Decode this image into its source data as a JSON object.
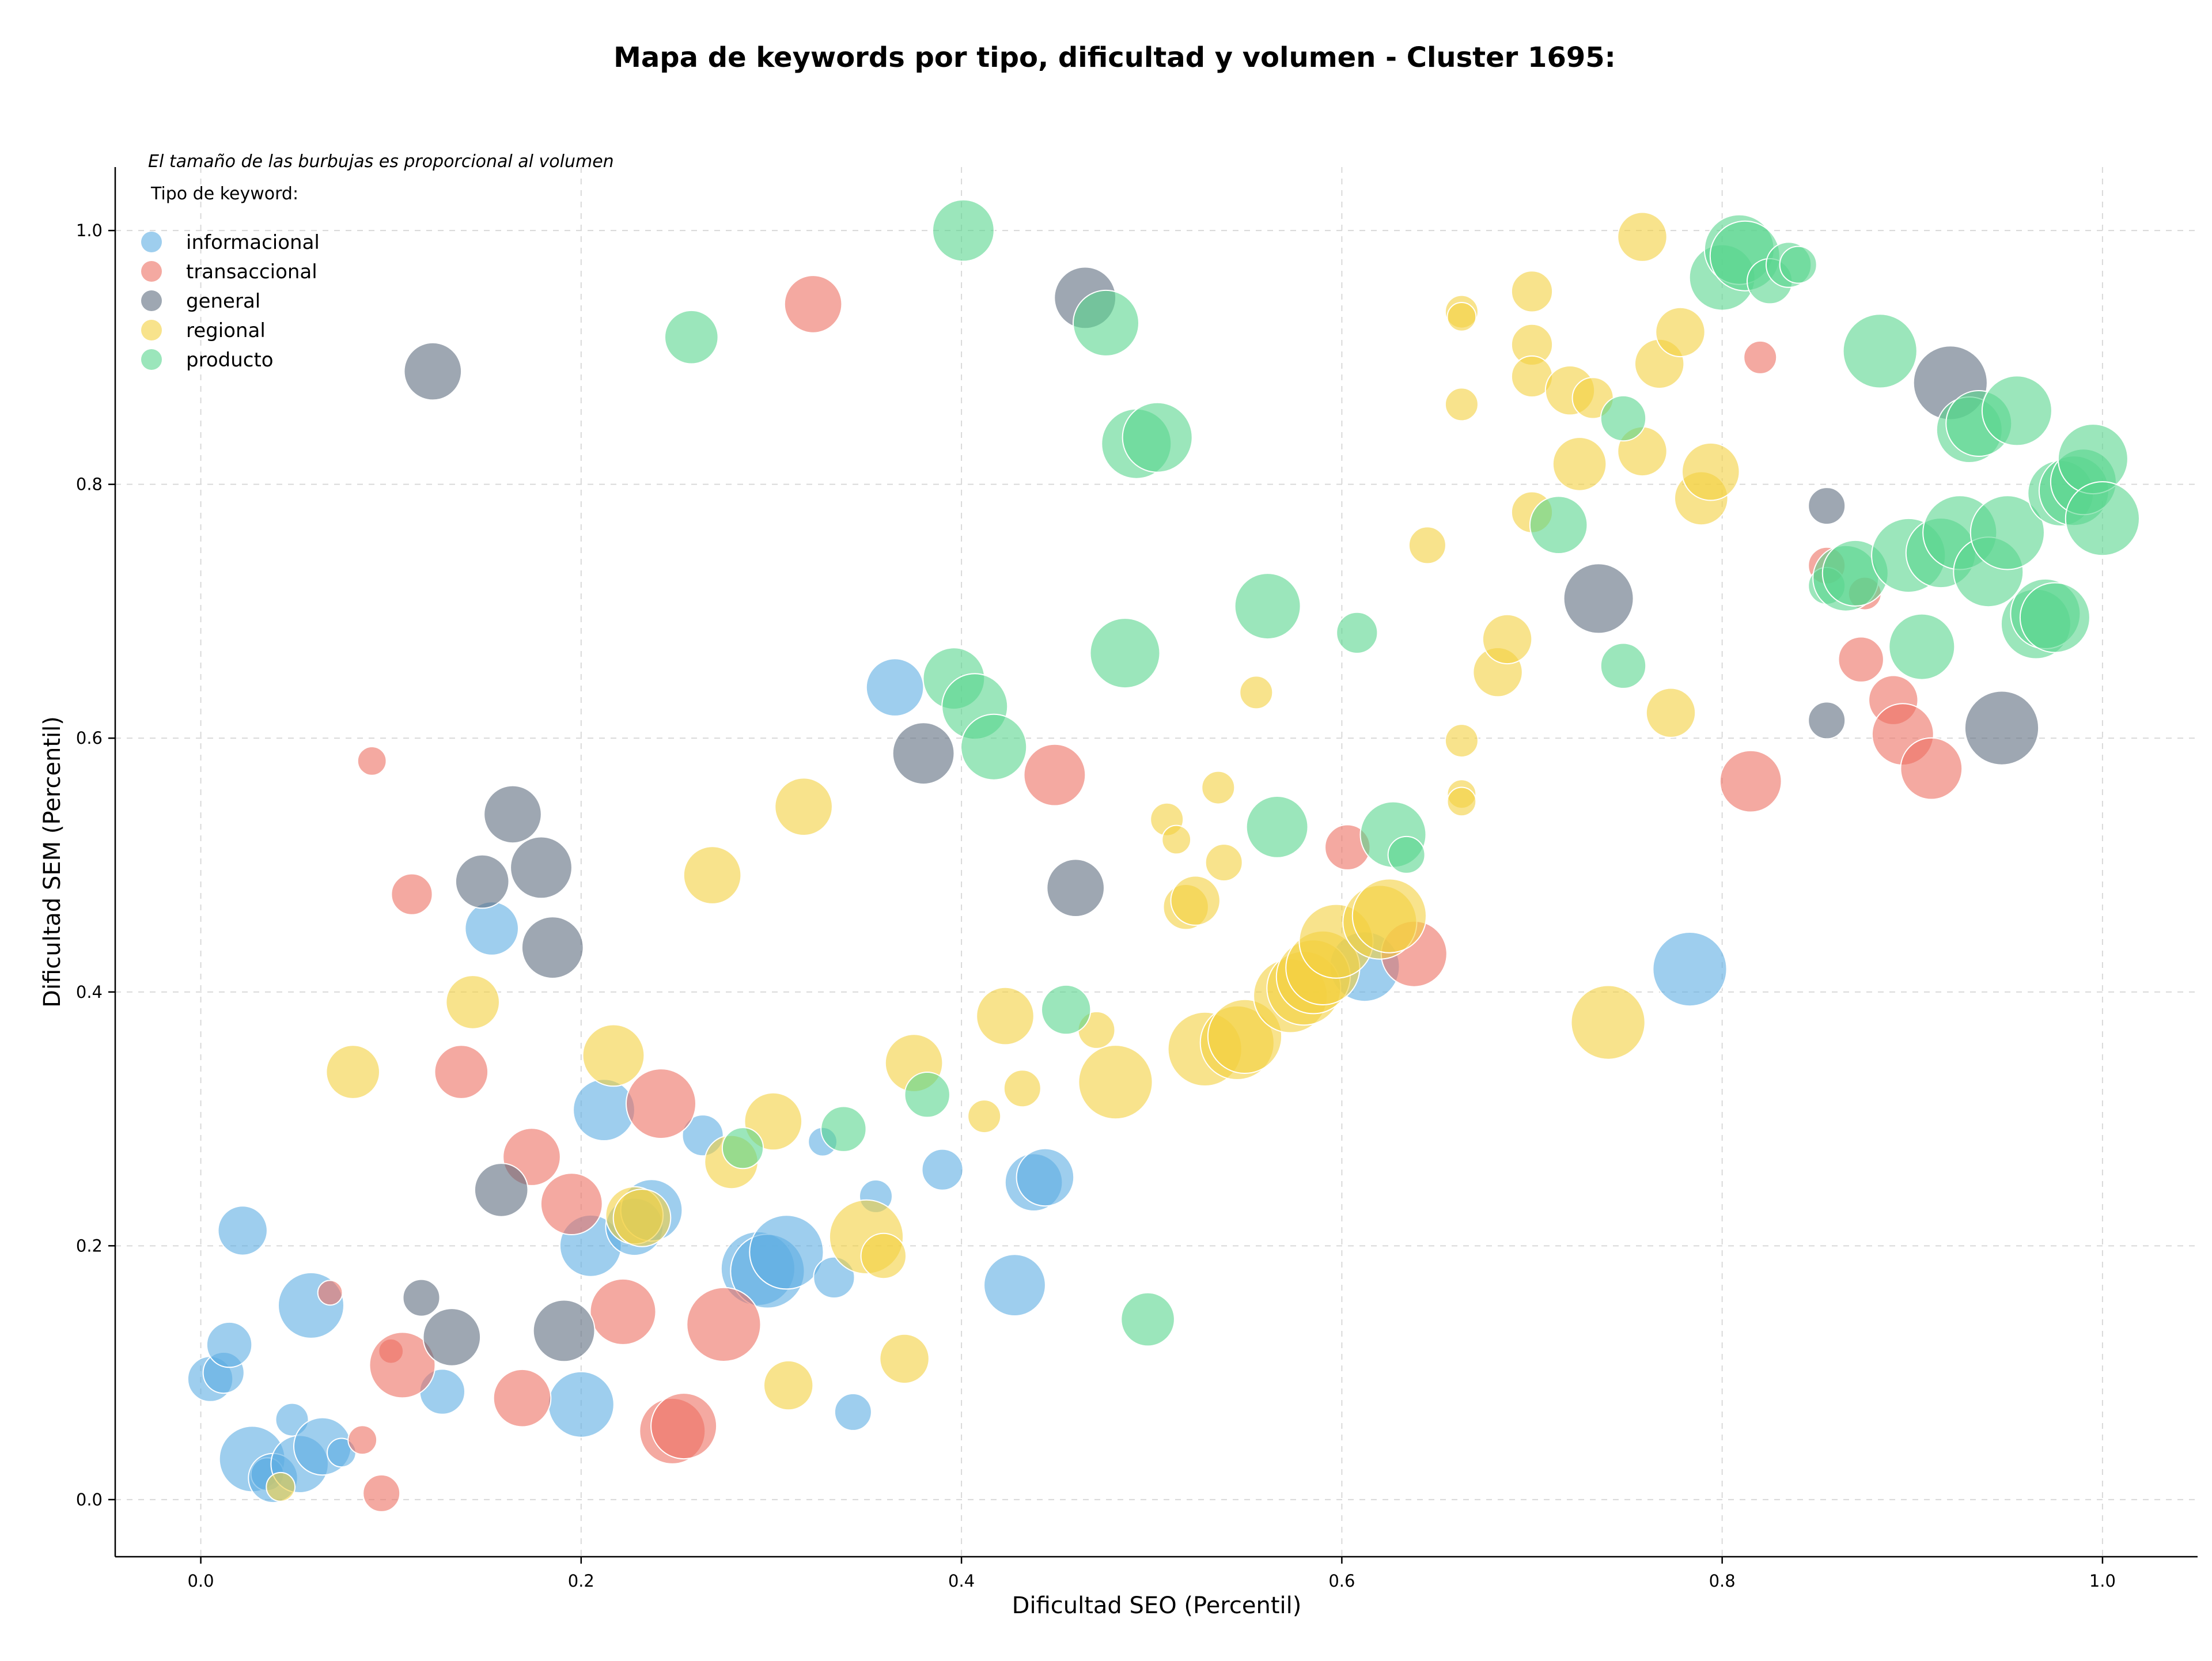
{
  "chart_data": {
    "type": "scatter",
    "title": "Mapa de keywords por tipo, dificultad y volumen - Cluster 1695:",
    "xlabel": "Dificultad SEO (Percentil)",
    "ylabel": "Dificultad SEM (Percentil)",
    "xlim": [
      -0.045,
      1.05
    ],
    "ylim": [
      -0.045,
      1.05
    ],
    "x_ticks": [
      "0.0",
      "0.2",
      "0.4",
      "0.6",
      "0.8",
      "1.0"
    ],
    "y_ticks": [
      "0.0",
      "0.2",
      "0.4",
      "0.6",
      "0.8",
      "1.0"
    ],
    "grid": true,
    "note": "El tamaño de las burbujas es proporcional al volumen",
    "legend": {
      "title": "Tipo de keyword:",
      "placement": "top-left",
      "entries": [
        "informacional",
        "transaccional",
        "general",
        "regional",
        "producto"
      ]
    },
    "colors": {
      "informacional": "#5dade2",
      "transaccional": "#ec7063",
      "general": "#5d6d7e",
      "regional": "#f4d03f",
      "producto": "#58d68d"
    },
    "size_unit": "relative volume (bubble radius scale)",
    "series": [
      {
        "name": "informacional",
        "points": [
          [
            0.005,
            0.095,
            22
          ],
          [
            0.012,
            0.1,
            20
          ],
          [
            0.015,
            0.122,
            22
          ],
          [
            0.022,
            0.212,
            24
          ],
          [
            0.027,
            0.032,
            32
          ],
          [
            0.035,
            0.02,
            16
          ],
          [
            0.038,
            0.017,
            24
          ],
          [
            0.048,
            0.063,
            16
          ],
          [
            0.052,
            0.028,
            28
          ],
          [
            0.058,
            0.153,
            32
          ],
          [
            0.064,
            0.042,
            28
          ],
          [
            0.074,
            0.037,
            14
          ],
          [
            0.127,
            0.085,
            22
          ],
          [
            0.153,
            0.45,
            26
          ],
          [
            0.2,
            0.075,
            32
          ],
          [
            0.205,
            0.2,
            30
          ],
          [
            0.212,
            0.307,
            30
          ],
          [
            0.228,
            0.215,
            28
          ],
          [
            0.237,
            0.228,
            30
          ],
          [
            0.264,
            0.287,
            20
          ],
          [
            0.293,
            0.182,
            36
          ],
          [
            0.298,
            0.18,
            36
          ],
          [
            0.308,
            0.195,
            36
          ],
          [
            0.327,
            0.282,
            14
          ],
          [
            0.333,
            0.175,
            20
          ],
          [
            0.343,
            0.069,
            18
          ],
          [
            0.355,
            0.239,
            16
          ],
          [
            0.365,
            0.64,
            28
          ],
          [
            0.39,
            0.26,
            20
          ],
          [
            0.428,
            0.169,
            30
          ],
          [
            0.438,
            0.25,
            28
          ],
          [
            0.444,
            0.254,
            28
          ],
          [
            0.612,
            0.42,
            34
          ],
          [
            0.783,
            0.418,
            36
          ]
        ]
      },
      {
        "name": "transaccional",
        "points": [
          [
            0.068,
            0.163,
            12
          ],
          [
            0.085,
            0.047,
            14
          ],
          [
            0.09,
            0.582,
            14
          ],
          [
            0.095,
            0.005,
            18
          ],
          [
            0.1,
            0.117,
            12
          ],
          [
            0.106,
            0.106,
            32
          ],
          [
            0.111,
            0.477,
            20
          ],
          [
            0.137,
            0.337,
            26
          ],
          [
            0.169,
            0.08,
            28
          ],
          [
            0.174,
            0.27,
            28
          ],
          [
            0.195,
            0.233,
            30
          ],
          [
            0.222,
            0.148,
            32
          ],
          [
            0.242,
            0.312,
            34
          ],
          [
            0.248,
            0.054,
            32
          ],
          [
            0.254,
            0.058,
            32
          ],
          [
            0.275,
            0.138,
            36
          ],
          [
            0.322,
            0.942,
            28
          ],
          [
            0.449,
            0.571,
            30
          ],
          [
            0.603,
            0.514,
            22
          ],
          [
            0.638,
            0.43,
            32
          ],
          [
            0.815,
            0.566,
            30
          ],
          [
            0.82,
            0.9,
            16
          ],
          [
            0.855,
            0.736,
            18
          ],
          [
            0.875,
            0.714,
            16
          ],
          [
            0.873,
            0.662,
            22
          ],
          [
            0.89,
            0.63,
            24
          ],
          [
            0.895,
            0.603,
            30
          ],
          [
            0.91,
            0.576,
            30
          ]
        ]
      },
      {
        "name": "general",
        "points": [
          [
            0.116,
            0.159,
            18
          ],
          [
            0.122,
            0.889,
            28
          ],
          [
            0.132,
            0.128,
            28
          ],
          [
            0.148,
            0.487,
            26
          ],
          [
            0.158,
            0.244,
            26
          ],
          [
            0.164,
            0.54,
            28
          ],
          [
            0.179,
            0.498,
            30
          ],
          [
            0.185,
            0.435,
            30
          ],
          [
            0.191,
            0.133,
            30
          ],
          [
            0.38,
            0.588,
            30
          ],
          [
            0.46,
            0.482,
            28
          ],
          [
            0.465,
            0.947,
            30
          ],
          [
            0.735,
            0.71,
            34
          ],
          [
            0.855,
            0.783,
            18
          ],
          [
            0.855,
            0.614,
            18
          ],
          [
            0.92,
            0.88,
            36
          ],
          [
            0.947,
            0.608,
            36
          ]
        ]
      },
      {
        "name": "regional",
        "points": [
          [
            0.042,
            0.01,
            14
          ],
          [
            0.08,
            0.337,
            26
          ],
          [
            0.143,
            0.392,
            26
          ],
          [
            0.217,
            0.35,
            30
          ],
          [
            0.228,
            0.224,
            28
          ],
          [
            0.232,
            0.222,
            28
          ],
          [
            0.269,
            0.492,
            28
          ],
          [
            0.279,
            0.266,
            26
          ],
          [
            0.301,
            0.298,
            28
          ],
          [
            0.309,
            0.09,
            24
          ],
          [
            0.317,
            0.546,
            28
          ],
          [
            0.35,
            0.207,
            36
          ],
          [
            0.359,
            0.192,
            22
          ],
          [
            0.37,
            0.111,
            24
          ],
          [
            0.375,
            0.344,
            28
          ],
          [
            0.412,
            0.302,
            16
          ],
          [
            0.423,
            0.381,
            28
          ],
          [
            0.432,
            0.324,
            18
          ],
          [
            0.471,
            0.37,
            18
          ],
          [
            0.481,
            0.329,
            36
          ],
          [
            0.508,
            0.536,
            16
          ],
          [
            0.513,
            0.52,
            14
          ],
          [
            0.518,
            0.467,
            22
          ],
          [
            0.523,
            0.472,
            24
          ],
          [
            0.528,
            0.355,
            36
          ],
          [
            0.535,
            0.561,
            16
          ],
          [
            0.538,
            0.502,
            18
          ],
          [
            0.545,
            0.36,
            36
          ],
          [
            0.549,
            0.365,
            36
          ],
          [
            0.555,
            0.636,
            16
          ],
          [
            0.573,
            0.397,
            36
          ],
          [
            0.58,
            0.403,
            36
          ],
          [
            0.585,
            0.412,
            36
          ],
          [
            0.59,
            0.419,
            36
          ],
          [
            0.597,
            0.44,
            36
          ],
          [
            0.62,
            0.455,
            36
          ],
          [
            0.625,
            0.46,
            36
          ],
          [
            0.645,
            0.752,
            18
          ],
          [
            0.663,
            0.936,
            16
          ],
          [
            0.663,
            0.932,
            14
          ],
          [
            0.663,
            0.863,
            16
          ],
          [
            0.663,
            0.598,
            16
          ],
          [
            0.663,
            0.556,
            14
          ],
          [
            0.663,
            0.55,
            14
          ],
          [
            0.682,
            0.652,
            24
          ],
          [
            0.687,
            0.678,
            24
          ],
          [
            0.7,
            0.952,
            20
          ],
          [
            0.7,
            0.91,
            20
          ],
          [
            0.7,
            0.885,
            20
          ],
          [
            0.7,
            0.778,
            20
          ],
          [
            0.72,
            0.874,
            24
          ],
          [
            0.725,
            0.816,
            26
          ],
          [
            0.732,
            0.868,
            20
          ],
          [
            0.74,
            0.376,
            36
          ],
          [
            0.758,
            0.995,
            24
          ],
          [
            0.758,
            0.826,
            24
          ],
          [
            0.767,
            0.895,
            24
          ],
          [
            0.773,
            0.62,
            24
          ],
          [
            0.778,
            0.92,
            24
          ],
          [
            0.789,
            0.789,
            26
          ],
          [
            0.794,
            0.81,
            28
          ]
        ]
      },
      {
        "name": "producto",
        "points": [
          [
            0.258,
            0.916,
            26
          ],
          [
            0.285,
            0.277,
            20
          ],
          [
            0.338,
            0.292,
            22
          ],
          [
            0.382,
            0.319,
            22
          ],
          [
            0.396,
            0.647,
            30
          ],
          [
            0.401,
            1.0,
            30
          ],
          [
            0.407,
            0.625,
            32
          ],
          [
            0.417,
            0.593,
            32
          ],
          [
            0.455,
            0.386,
            24
          ],
          [
            0.476,
            0.927,
            32
          ],
          [
            0.486,
            0.667,
            34
          ],
          [
            0.492,
            0.832,
            34
          ],
          [
            0.498,
            0.142,
            26
          ],
          [
            0.503,
            0.837,
            34
          ],
          [
            0.561,
            0.704,
            32
          ],
          [
            0.566,
            0.53,
            30
          ],
          [
            0.608,
            0.683,
            20
          ],
          [
            0.627,
            0.524,
            32
          ],
          [
            0.634,
            0.508,
            18
          ],
          [
            0.714,
            0.768,
            28
          ],
          [
            0.748,
            0.852,
            22
          ],
          [
            0.748,
            0.657,
            22
          ],
          [
            0.8,
            0.963,
            32
          ],
          [
            0.809,
            0.985,
            34
          ],
          [
            0.812,
            0.98,
            34
          ],
          [
            0.825,
            0.96,
            22
          ],
          [
            0.835,
            0.973,
            22
          ],
          [
            0.84,
            0.973,
            18
          ],
          [
            0.855,
            0.72,
            18
          ],
          [
            0.865,
            0.726,
            32
          ],
          [
            0.87,
            0.73,
            32
          ],
          [
            0.883,
            0.905,
            36
          ],
          [
            0.898,
            0.744,
            36
          ],
          [
            0.905,
            0.672,
            32
          ],
          [
            0.915,
            0.746,
            34
          ],
          [
            0.925,
            0.762,
            36
          ],
          [
            0.93,
            0.843,
            32
          ],
          [
            0.935,
            0.848,
            32
          ],
          [
            0.94,
            0.731,
            34
          ],
          [
            0.955,
            0.858,
            34
          ],
          [
            0.95,
            0.762,
            36
          ],
          [
            0.965,
            0.69,
            34
          ],
          [
            0.97,
            0.698,
            34
          ],
          [
            0.975,
            0.695,
            34
          ],
          [
            0.978,
            0.793,
            32
          ],
          [
            0.985,
            0.795,
            34
          ],
          [
            0.99,
            0.802,
            32
          ],
          [
            0.995,
            0.82,
            34
          ],
          [
            1.0,
            0.773,
            36
          ]
        ]
      }
    ]
  }
}
